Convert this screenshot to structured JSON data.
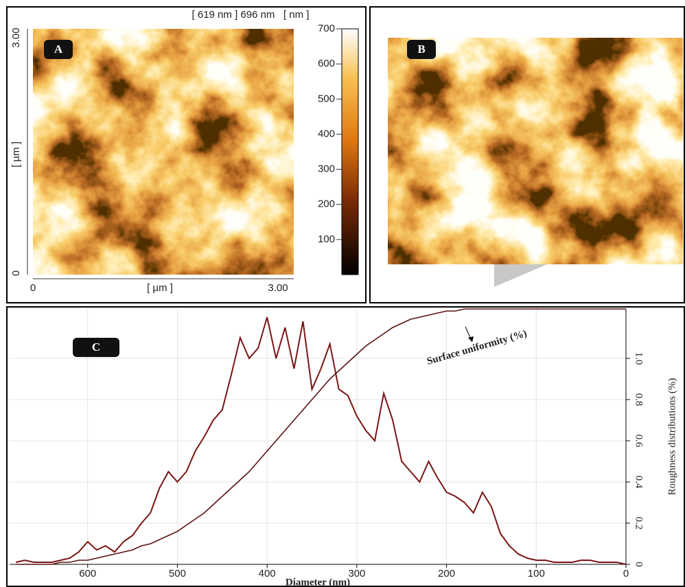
{
  "panel_a": {
    "label": "A",
    "header": "[ 619 nm ] 696 nm   [ nm ]",
    "y_axis_label": "[ µm ]",
    "x_axis_label": "[ µm ]",
    "x_ticks": [
      "0",
      "3.00"
    ],
    "y_ticks": [
      "0",
      "3.00"
    ],
    "colorbar": {
      "lim": [
        0,
        700
      ],
      "ticks": [
        100,
        200,
        300,
        400,
        500,
        600,
        700
      ]
    }
  },
  "panel_b": {
    "label": "B"
  },
  "chart_data": {
    "type": "line",
    "panel_label": "C",
    "x_label": "Diameter (nm)",
    "y_label": "Roughness distributions (%)",
    "annotation": "Surface uniformity (%)",
    "xlim": [
      687,
      0
    ],
    "xticks": [
      600,
      500,
      400,
      300,
      200,
      100,
      0
    ],
    "ylim": [
      0,
      1.24
    ],
    "yticks": [
      0,
      0.2,
      0.4,
      0.6,
      0.8,
      {
        "value": 1,
        "label": "1.0"
      }
    ],
    "grid": true,
    "x": [
      680,
      670,
      660,
      650,
      640,
      630,
      620,
      610,
      600,
      590,
      580,
      570,
      560,
      550,
      540,
      530,
      520,
      510,
      500,
      490,
      480,
      470,
      460,
      450,
      440,
      430,
      420,
      410,
      400,
      390,
      380,
      370,
      360,
      350,
      340,
      330,
      320,
      310,
      300,
      290,
      280,
      270,
      260,
      250,
      240,
      230,
      220,
      210,
      200,
      190,
      180,
      170,
      160,
      150,
      140,
      130,
      120,
      110,
      100,
      90,
      80,
      70,
      60,
      50,
      40,
      30,
      20,
      10,
      0
    ],
    "series": [
      {
        "color": "#7a1414",
        "values": [
          0.01,
          0.02,
          0.01,
          0.01,
          0.01,
          0.02,
          0.03,
          0.06,
          0.11,
          0.07,
          0.09,
          0.06,
          0.11,
          0.14,
          0.2,
          0.25,
          0.37,
          0.45,
          0.4,
          0.45,
          0.55,
          0.62,
          0.7,
          0.75,
          0.92,
          1.1,
          1.0,
          1.05,
          1.2,
          1.0,
          1.15,
          0.95,
          1.18,
          0.85,
          0.95,
          1.07,
          0.85,
          0.82,
          0.72,
          0.65,
          0.6,
          0.83,
          0.7,
          0.5,
          0.45,
          0.4,
          0.5,
          0.42,
          0.35,
          0.33,
          0.3,
          0.25,
          0.35,
          0.28,
          0.15,
          0.09,
          0.05,
          0.03,
          0.02,
          0.02,
          0.01,
          0.01,
          0.01,
          0.02,
          0.02,
          0.01,
          0.01,
          0.01,
          0
        ]
      },
      {
        "color": "#5a1010",
        "values": [
          0,
          0,
          0,
          0,
          0,
          0.01,
          0.01,
          0.02,
          0.02,
          0.03,
          0.04,
          0.05,
          0.06,
          0.07,
          0.09,
          0.1,
          0.12,
          0.14,
          0.16,
          0.19,
          0.22,
          0.25,
          0.29,
          0.33,
          0.37,
          0.41,
          0.45,
          0.5,
          0.55,
          0.6,
          0.65,
          0.7,
          0.75,
          0.8,
          0.85,
          0.9,
          0.94,
          0.98,
          1.02,
          1.06,
          1.09,
          1.12,
          1.15,
          1.17,
          1.19,
          1.2,
          1.21,
          1.22,
          1.23,
          1.23,
          1.24,
          1.24,
          1.24,
          1.24,
          1.24,
          1.24,
          1.24,
          1.24,
          1.24,
          1.24,
          1.24,
          1.24,
          1.24,
          1.24,
          1.24,
          1.24,
          1.24,
          1.24,
          1.24
        ]
      }
    ]
  }
}
